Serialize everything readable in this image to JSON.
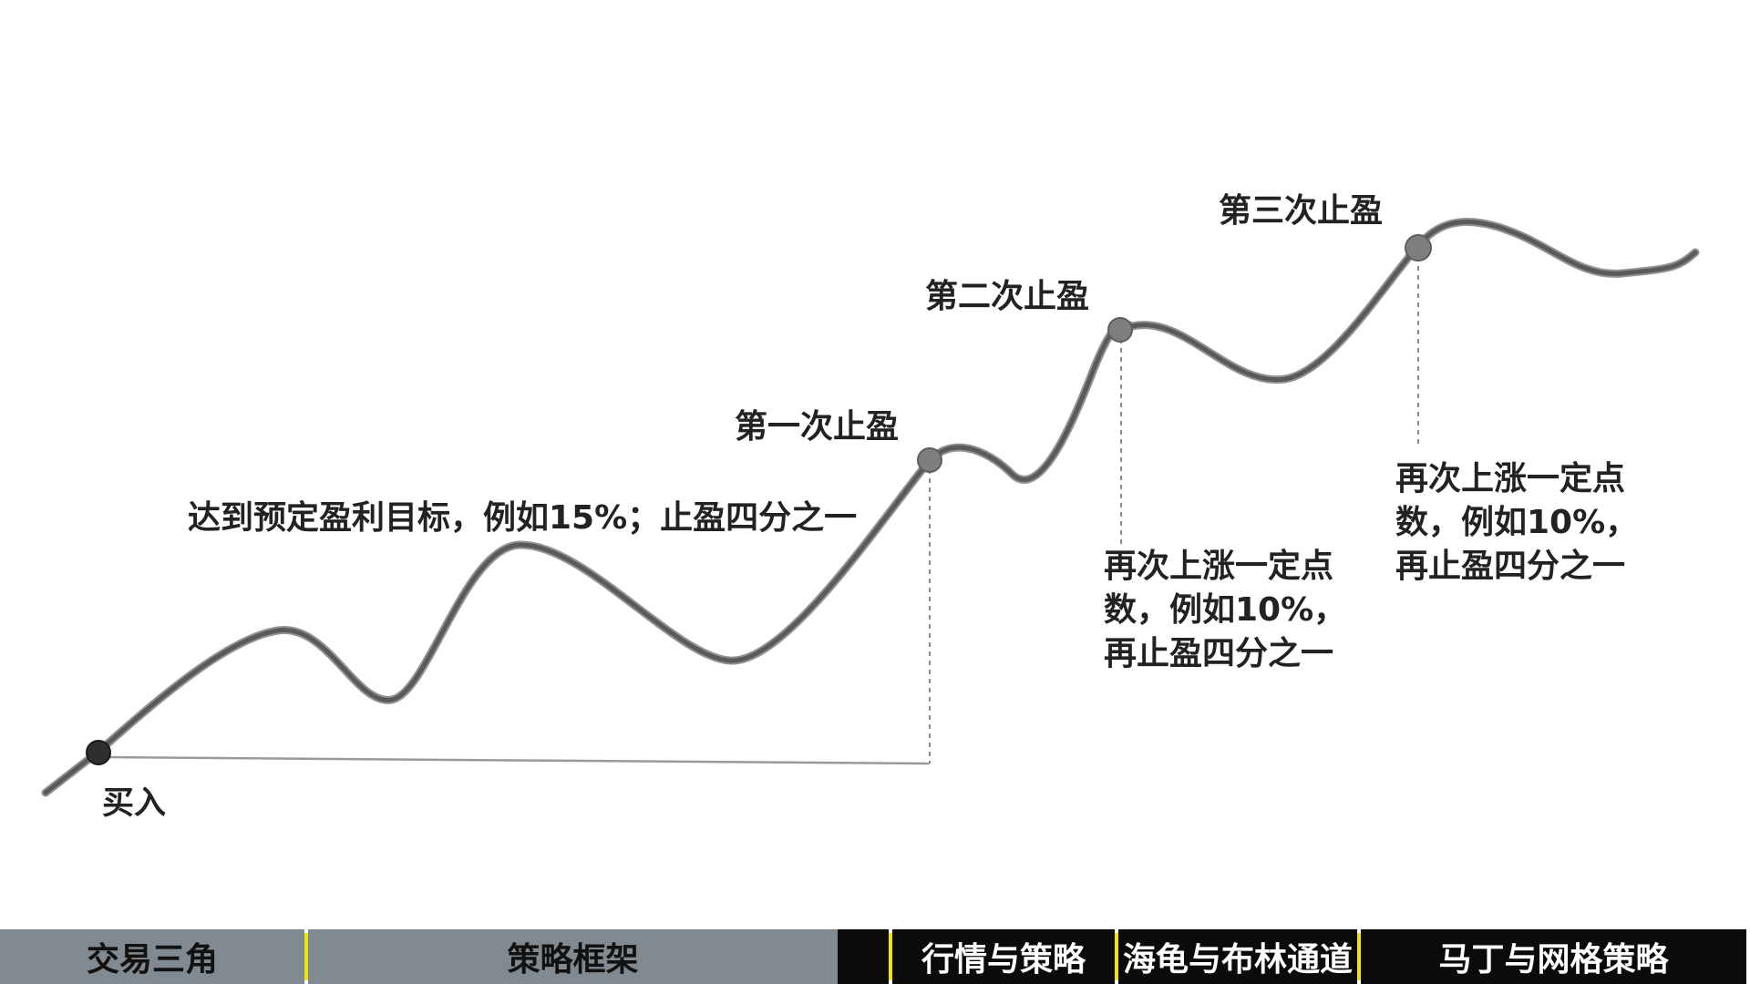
{
  "diagram": {
    "buy_label": "买入",
    "tp1_label": "第一次止盈",
    "tp2_label": "第二次止盈",
    "tp3_label": "第三次止盈",
    "tp1_note": "达到预定盈利目标，例如15%；止盈四分之一",
    "tp2_note": [
      "再次上涨一定点",
      "数，例如10%，",
      "再止盈四分之一"
    ],
    "tp3_note": [
      "再次上涨一定点",
      "数，例如10%，",
      "再止盈四分之一"
    ]
  },
  "nav": {
    "tabs": [
      {
        "label": "交易三角",
        "state": "inactive"
      },
      {
        "label": "策略框架",
        "state": "inactive"
      },
      {
        "label": "行情与策略",
        "state": "active"
      },
      {
        "label": "海龟与布林通道",
        "state": "active"
      },
      {
        "label": "马丁与网格策略",
        "state": "active"
      }
    ],
    "accent_color": "#f2e600",
    "inactive_color": "#818991",
    "active_color": "#0b0b0b"
  }
}
